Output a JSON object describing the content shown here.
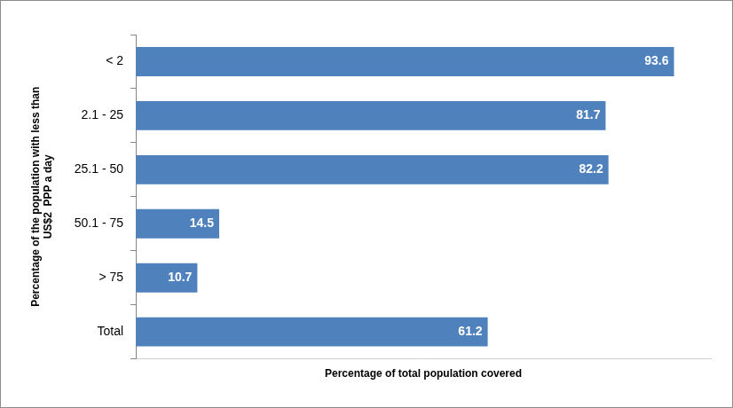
{
  "chart_data": {
    "type": "bar",
    "orientation": "horizontal",
    "categories": [
      "< 2",
      "2.1 - 25",
      "25.1 - 50",
      "50.1 - 75",
      "> 75",
      "Total"
    ],
    "values": [
      93.6,
      81.7,
      82.2,
      14.5,
      10.7,
      61.2
    ],
    "color": "#4f81bd",
    "xlabel": "Percentage of total population covered",
    "ylabel": "Percentage of the population with less than US$2  PPP a day",
    "xlim": [
      0,
      100
    ],
    "data_labels": true,
    "tick_labels": "y",
    "grid": false
  }
}
